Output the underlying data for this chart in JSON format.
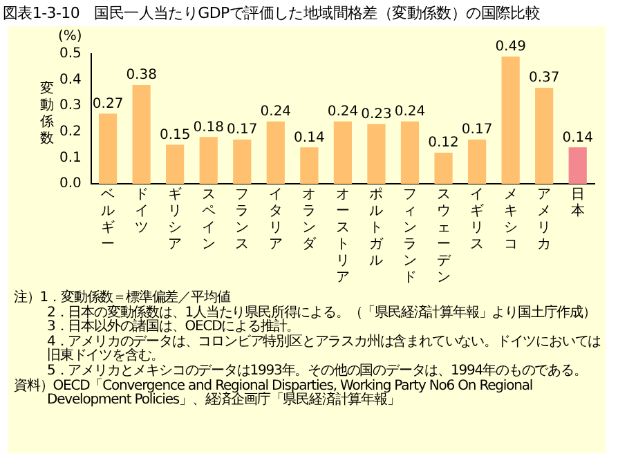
{
  "chart_data": {
    "type": "bar",
    "title": "図表1-3-10　国民一人当たりGDPで評価した地域間格差（変動係数）の国際比較",
    "ylabel": "変動係数",
    "categories": [
      "ベルギー",
      "ドイツ",
      "ギリシア",
      "スペイン",
      "フランス",
      "イタリア",
      "オランダ",
      "オーストリア",
      "ポルトガル",
      "フィンランド",
      "スウェーデン",
      "イギリス",
      "メキシコ",
      "アメリカ",
      "日本"
    ],
    "values": [
      0.27,
      0.38,
      0.15,
      0.18,
      0.17,
      0.24,
      0.14,
      0.24,
      0.23,
      0.24,
      0.12,
      0.17,
      0.49,
      0.37,
      0.14
    ],
    "colors": [
      "#ffc070",
      "#ffc070",
      "#ffc070",
      "#ffc070",
      "#ffc070",
      "#ffc070",
      "#ffc070",
      "#ffc070",
      "#ffc070",
      "#ffc070",
      "#ffc070",
      "#ffc070",
      "#ffc070",
      "#ffc070",
      "#f48890"
    ],
    "ylim": [
      0,
      0.5
    ],
    "yticks": [
      {
        "value": 0,
        "label": "0.0"
      },
      0.1,
      0.2,
      0.3,
      0.4,
      0.5
    ],
    "data_labels": true,
    "grid": false,
    "legend": false,
    "annotations": [
      "(%)",
      "注）1．変動係数＝標準偏差／平均値",
      "2．日本の変動係数は、1人当たり県民所得による。（「県民経済計算年報」より国土庁作成）",
      "3．日本以外の諸国は、OECDによる推計。",
      "4．アメリカのデータは、コロンビア特別区とアラスカ州は含まれていない。ドイツにおいては旧東ドイツを含む。",
      "5．アメリカとメキシコのデータは1993年。その他の国のデータは、1994年のものである。",
      "資料）OECD「Convergence and Regional Disparties, Working Party No6 On Regional Development Policies」、経済企画庁「県民経済計算年報」"
    ]
  }
}
